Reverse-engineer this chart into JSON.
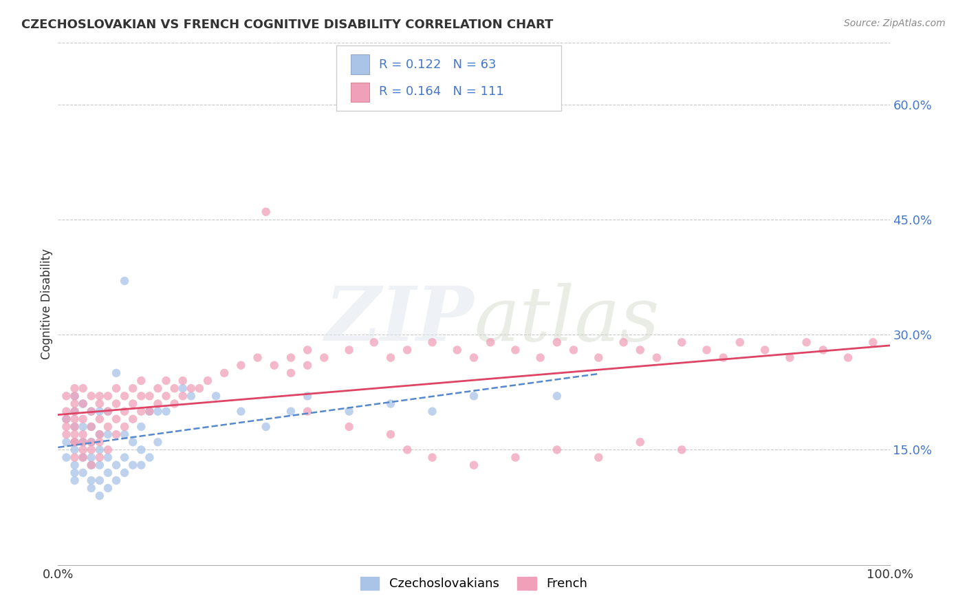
{
  "title": "CZECHOSLOVAKIAN VS FRENCH COGNITIVE DISABILITY CORRELATION CHART",
  "source": "Source: ZipAtlas.com",
  "ylabel": "Cognitive Disability",
  "xlim": [
    0.0,
    1.0
  ],
  "ylim": [
    0.0,
    0.68
  ],
  "y_tick_positions": [
    0.15,
    0.3,
    0.45,
    0.6
  ],
  "background_color": "#ffffff",
  "grid_color": "#c8c8c8",
  "watermark_text": "ZIPatlas",
  "legend_labels": [
    "Czechoslovakians",
    "French"
  ],
  "czech_color": "#aac4e8",
  "french_color": "#f0a0b8",
  "czech_line_color": "#5588cc",
  "french_line_color": "#dd4466",
  "label_color": "#4477cc",
  "R_czech": 0.122,
  "N_czech": 63,
  "R_french": 0.164,
  "N_french": 111,
  "czech_scatter_x": [
    0.01,
    0.01,
    0.01,
    0.02,
    0.02,
    0.02,
    0.02,
    0.02,
    0.02,
    0.02,
    0.02,
    0.03,
    0.03,
    0.03,
    0.03,
    0.03,
    0.04,
    0.04,
    0.04,
    0.04,
    0.04,
    0.04,
    0.04,
    0.05,
    0.05,
    0.05,
    0.05,
    0.05,
    0.05,
    0.06,
    0.06,
    0.06,
    0.06,
    0.06,
    0.07,
    0.07,
    0.07,
    0.08,
    0.08,
    0.08,
    0.08,
    0.09,
    0.09,
    0.1,
    0.1,
    0.1,
    0.11,
    0.11,
    0.12,
    0.12,
    0.13,
    0.15,
    0.16,
    0.19,
    0.22,
    0.25,
    0.28,
    0.3,
    0.35,
    0.4,
    0.45,
    0.5,
    0.6
  ],
  "czech_scatter_y": [
    0.14,
    0.16,
    0.19,
    0.11,
    0.12,
    0.13,
    0.15,
    0.16,
    0.18,
    0.2,
    0.22,
    0.12,
    0.14,
    0.16,
    0.18,
    0.21,
    0.1,
    0.11,
    0.13,
    0.14,
    0.16,
    0.18,
    0.2,
    0.09,
    0.11,
    0.13,
    0.15,
    0.17,
    0.2,
    0.1,
    0.12,
    0.14,
    0.17,
    0.2,
    0.11,
    0.13,
    0.25,
    0.12,
    0.14,
    0.17,
    0.37,
    0.13,
    0.16,
    0.13,
    0.15,
    0.18,
    0.14,
    0.2,
    0.16,
    0.2,
    0.2,
    0.23,
    0.22,
    0.22,
    0.2,
    0.18,
    0.2,
    0.22,
    0.2,
    0.21,
    0.2,
    0.22,
    0.22
  ],
  "french_scatter_x": [
    0.01,
    0.01,
    0.01,
    0.01,
    0.01,
    0.02,
    0.02,
    0.02,
    0.02,
    0.02,
    0.02,
    0.02,
    0.02,
    0.02,
    0.02,
    0.03,
    0.03,
    0.03,
    0.03,
    0.03,
    0.03,
    0.03,
    0.04,
    0.04,
    0.04,
    0.04,
    0.04,
    0.04,
    0.05,
    0.05,
    0.05,
    0.05,
    0.05,
    0.05,
    0.06,
    0.06,
    0.06,
    0.06,
    0.07,
    0.07,
    0.07,
    0.07,
    0.08,
    0.08,
    0.08,
    0.09,
    0.09,
    0.09,
    0.1,
    0.1,
    0.1,
    0.11,
    0.11,
    0.12,
    0.12,
    0.13,
    0.13,
    0.14,
    0.14,
    0.15,
    0.15,
    0.16,
    0.17,
    0.18,
    0.2,
    0.22,
    0.24,
    0.25,
    0.26,
    0.28,
    0.28,
    0.3,
    0.3,
    0.32,
    0.35,
    0.38,
    0.4,
    0.42,
    0.45,
    0.48,
    0.5,
    0.52,
    0.55,
    0.58,
    0.6,
    0.62,
    0.65,
    0.68,
    0.7,
    0.72,
    0.75,
    0.78,
    0.8,
    0.82,
    0.85,
    0.88,
    0.9,
    0.92,
    0.95,
    0.98,
    0.3,
    0.35,
    0.4,
    0.42,
    0.45,
    0.5,
    0.55,
    0.6,
    0.65,
    0.7,
    0.75
  ],
  "french_scatter_y": [
    0.18,
    0.2,
    0.22,
    0.17,
    0.19,
    0.16,
    0.18,
    0.2,
    0.22,
    0.17,
    0.19,
    0.21,
    0.14,
    0.16,
    0.23,
    0.15,
    0.17,
    0.19,
    0.21,
    0.23,
    0.14,
    0.16,
    0.16,
    0.18,
    0.2,
    0.22,
    0.13,
    0.15,
    0.17,
    0.19,
    0.21,
    0.22,
    0.14,
    0.16,
    0.18,
    0.2,
    0.22,
    0.15,
    0.17,
    0.19,
    0.21,
    0.23,
    0.18,
    0.2,
    0.22,
    0.19,
    0.21,
    0.23,
    0.2,
    0.22,
    0.24,
    0.2,
    0.22,
    0.21,
    0.23,
    0.22,
    0.24,
    0.21,
    0.23,
    0.22,
    0.24,
    0.23,
    0.23,
    0.24,
    0.25,
    0.26,
    0.27,
    0.46,
    0.26,
    0.27,
    0.25,
    0.28,
    0.26,
    0.27,
    0.28,
    0.29,
    0.27,
    0.28,
    0.29,
    0.28,
    0.27,
    0.29,
    0.28,
    0.27,
    0.29,
    0.28,
    0.27,
    0.29,
    0.28,
    0.27,
    0.29,
    0.28,
    0.27,
    0.29,
    0.28,
    0.27,
    0.29,
    0.28,
    0.27,
    0.29,
    0.2,
    0.18,
    0.17,
    0.15,
    0.14,
    0.13,
    0.14,
    0.15,
    0.14,
    0.16,
    0.15
  ]
}
